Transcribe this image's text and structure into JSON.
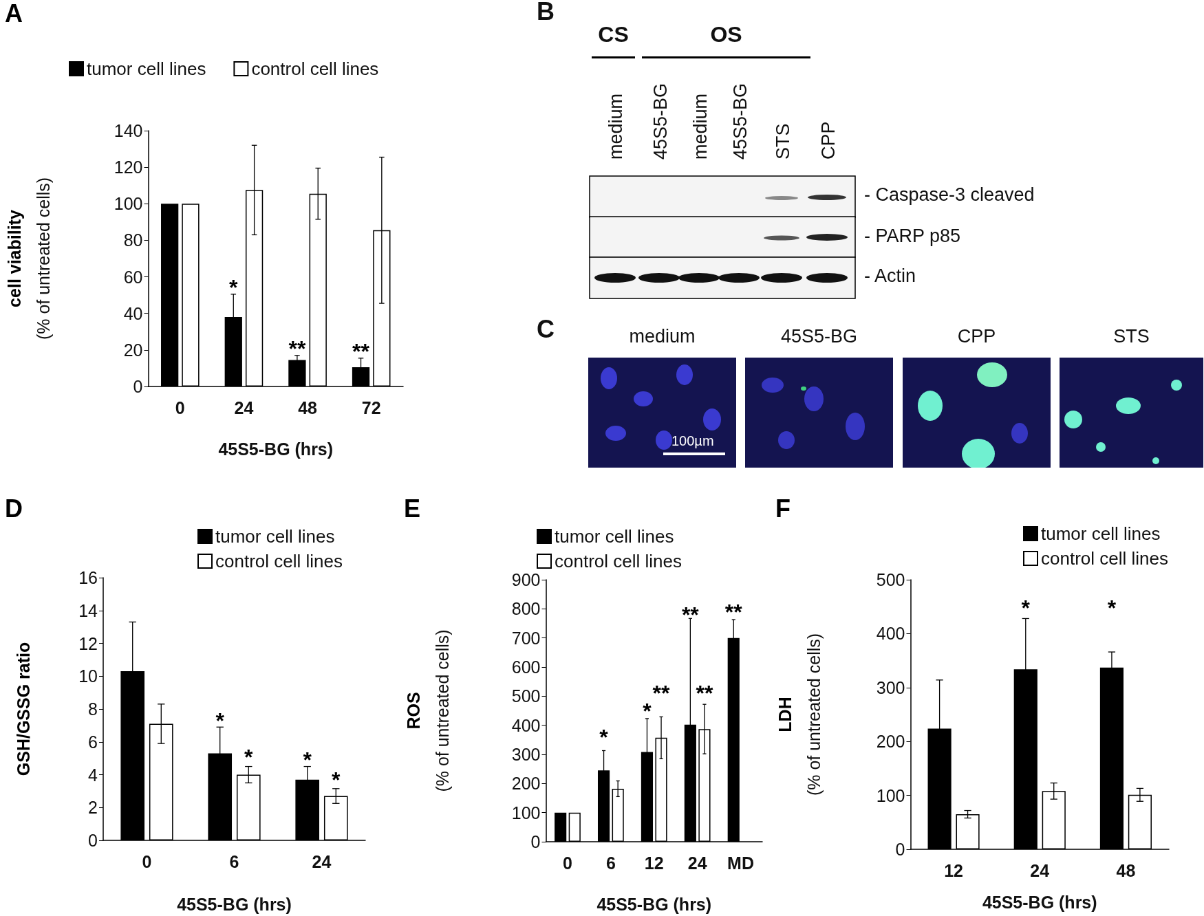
{
  "chart_data": [
    {
      "type": "bar",
      "title": "A",
      "categories": [
        "0",
        "24",
        "48",
        "72"
      ],
      "xlabel": "45S5-BG (hrs)",
      "ylabel": "cell viability\n(% of untreated cells)",
      "ylim": [
        0,
        140
      ],
      "yticks": [
        0,
        20,
        40,
        60,
        80,
        100,
        120,
        140
      ],
      "legend": "top",
      "series": [
        {
          "name": "tumor cell lines",
          "color": "#000000",
          "values": [
            100,
            38,
            14.5,
            10.5
          ],
          "errors": [
            null,
            12.5,
            2.5,
            5
          ]
        },
        {
          "name": "control cell lines",
          "color": "#ffffff",
          "values": [
            100,
            107.5,
            105.5,
            85.5
          ],
          "errors": [
            null,
            24.5,
            14,
            40
          ]
        }
      ],
      "annotations": [
        {
          "text": "*",
          "x": "24",
          "y": 50.5
        },
        {
          "text": "**",
          "x": "48",
          "y": 17
        },
        {
          "text": "**",
          "x": "72",
          "y": 15.5
        }
      ]
    },
    {
      "type": "other",
      "title": "B",
      "annotations": [
        "CS",
        "OS",
        "medium",
        "45S5-BG",
        "medium",
        "45S5-BG",
        "STS",
        "CPP",
        "- Caspase-3 cleaved",
        "- PARP p85",
        "- Actin"
      ]
    },
    {
      "type": "other",
      "title": "C",
      "annotations": [
        "medium",
        "45S5-BG",
        "CPP",
        "STS",
        "100µm"
      ]
    },
    {
      "type": "bar",
      "title": "D",
      "categories": [
        "0",
        "6",
        "24"
      ],
      "xlabel": "45S5-BG (hrs)",
      "ylabel": "GSH/GSSG ratio",
      "ylim": [
        0,
        16
      ],
      "yticks": [
        0,
        2,
        4,
        6,
        8,
        10,
        12,
        14,
        16
      ],
      "legend": "top right",
      "series": [
        {
          "name": "tumor cell lines",
          "color": "#000000",
          "values": [
            10.3,
            5.3,
            3.7
          ],
          "errors": [
            3,
            1.6,
            0.8
          ]
        },
        {
          "name": "control cell lines",
          "color": "#ffffff",
          "values": [
            7.1,
            4,
            2.7
          ],
          "errors": [
            1.2,
            0.5,
            0.45
          ]
        }
      ],
      "annotations": [
        "*",
        "*",
        "*",
        "*"
      ]
    },
    {
      "type": "bar",
      "title": "E",
      "categories": [
        "0",
        "6",
        "12",
        "24",
        "MD"
      ],
      "xlabel": "45S5-BG (hrs)",
      "ylabel": "ROS\n(% of untreated cells)",
      "ylim": [
        0,
        900
      ],
      "yticks": [
        0,
        100,
        200,
        300,
        400,
        500,
        600,
        700,
        800,
        900
      ],
      "legend": "top",
      "series": [
        {
          "name": "tumor cell lines",
          "color": "#000000",
          "values": [
            100,
            245,
            308,
            402,
            700
          ],
          "errors": [
            null,
            68,
            115,
            365,
            63
          ]
        },
        {
          "name": "control cell lines",
          "color": "#ffffff",
          "values": [
            100,
            182,
            357,
            387,
            null
          ],
          "errors": [
            null,
            27,
            72,
            85,
            null
          ]
        }
      ],
      "annotations": [
        "*",
        "*",
        "**",
        "**",
        "**",
        "**"
      ]
    },
    {
      "type": "bar",
      "title": "F",
      "categories": [
        "12",
        "24",
        "48"
      ],
      "xlabel": "45S5-BG (hrs)",
      "ylabel": "LDH\n(% of untreated cells)",
      "ylim": [
        0,
        500
      ],
      "yticks": [
        0,
        100,
        200,
        300,
        400,
        500
      ],
      "legend": "top right",
      "series": [
        {
          "name": "tumor cell lines",
          "color": "#000000",
          "values": [
            224,
            334,
            337
          ],
          "errors": [
            90,
            94,
            29
          ]
        },
        {
          "name": "control cell lines",
          "color": "#ffffff",
          "values": [
            65,
            108,
            101
          ],
          "errors": [
            7,
            15,
            12
          ]
        }
      ],
      "annotations": [
        "*",
        "*"
      ]
    }
  ]
}
